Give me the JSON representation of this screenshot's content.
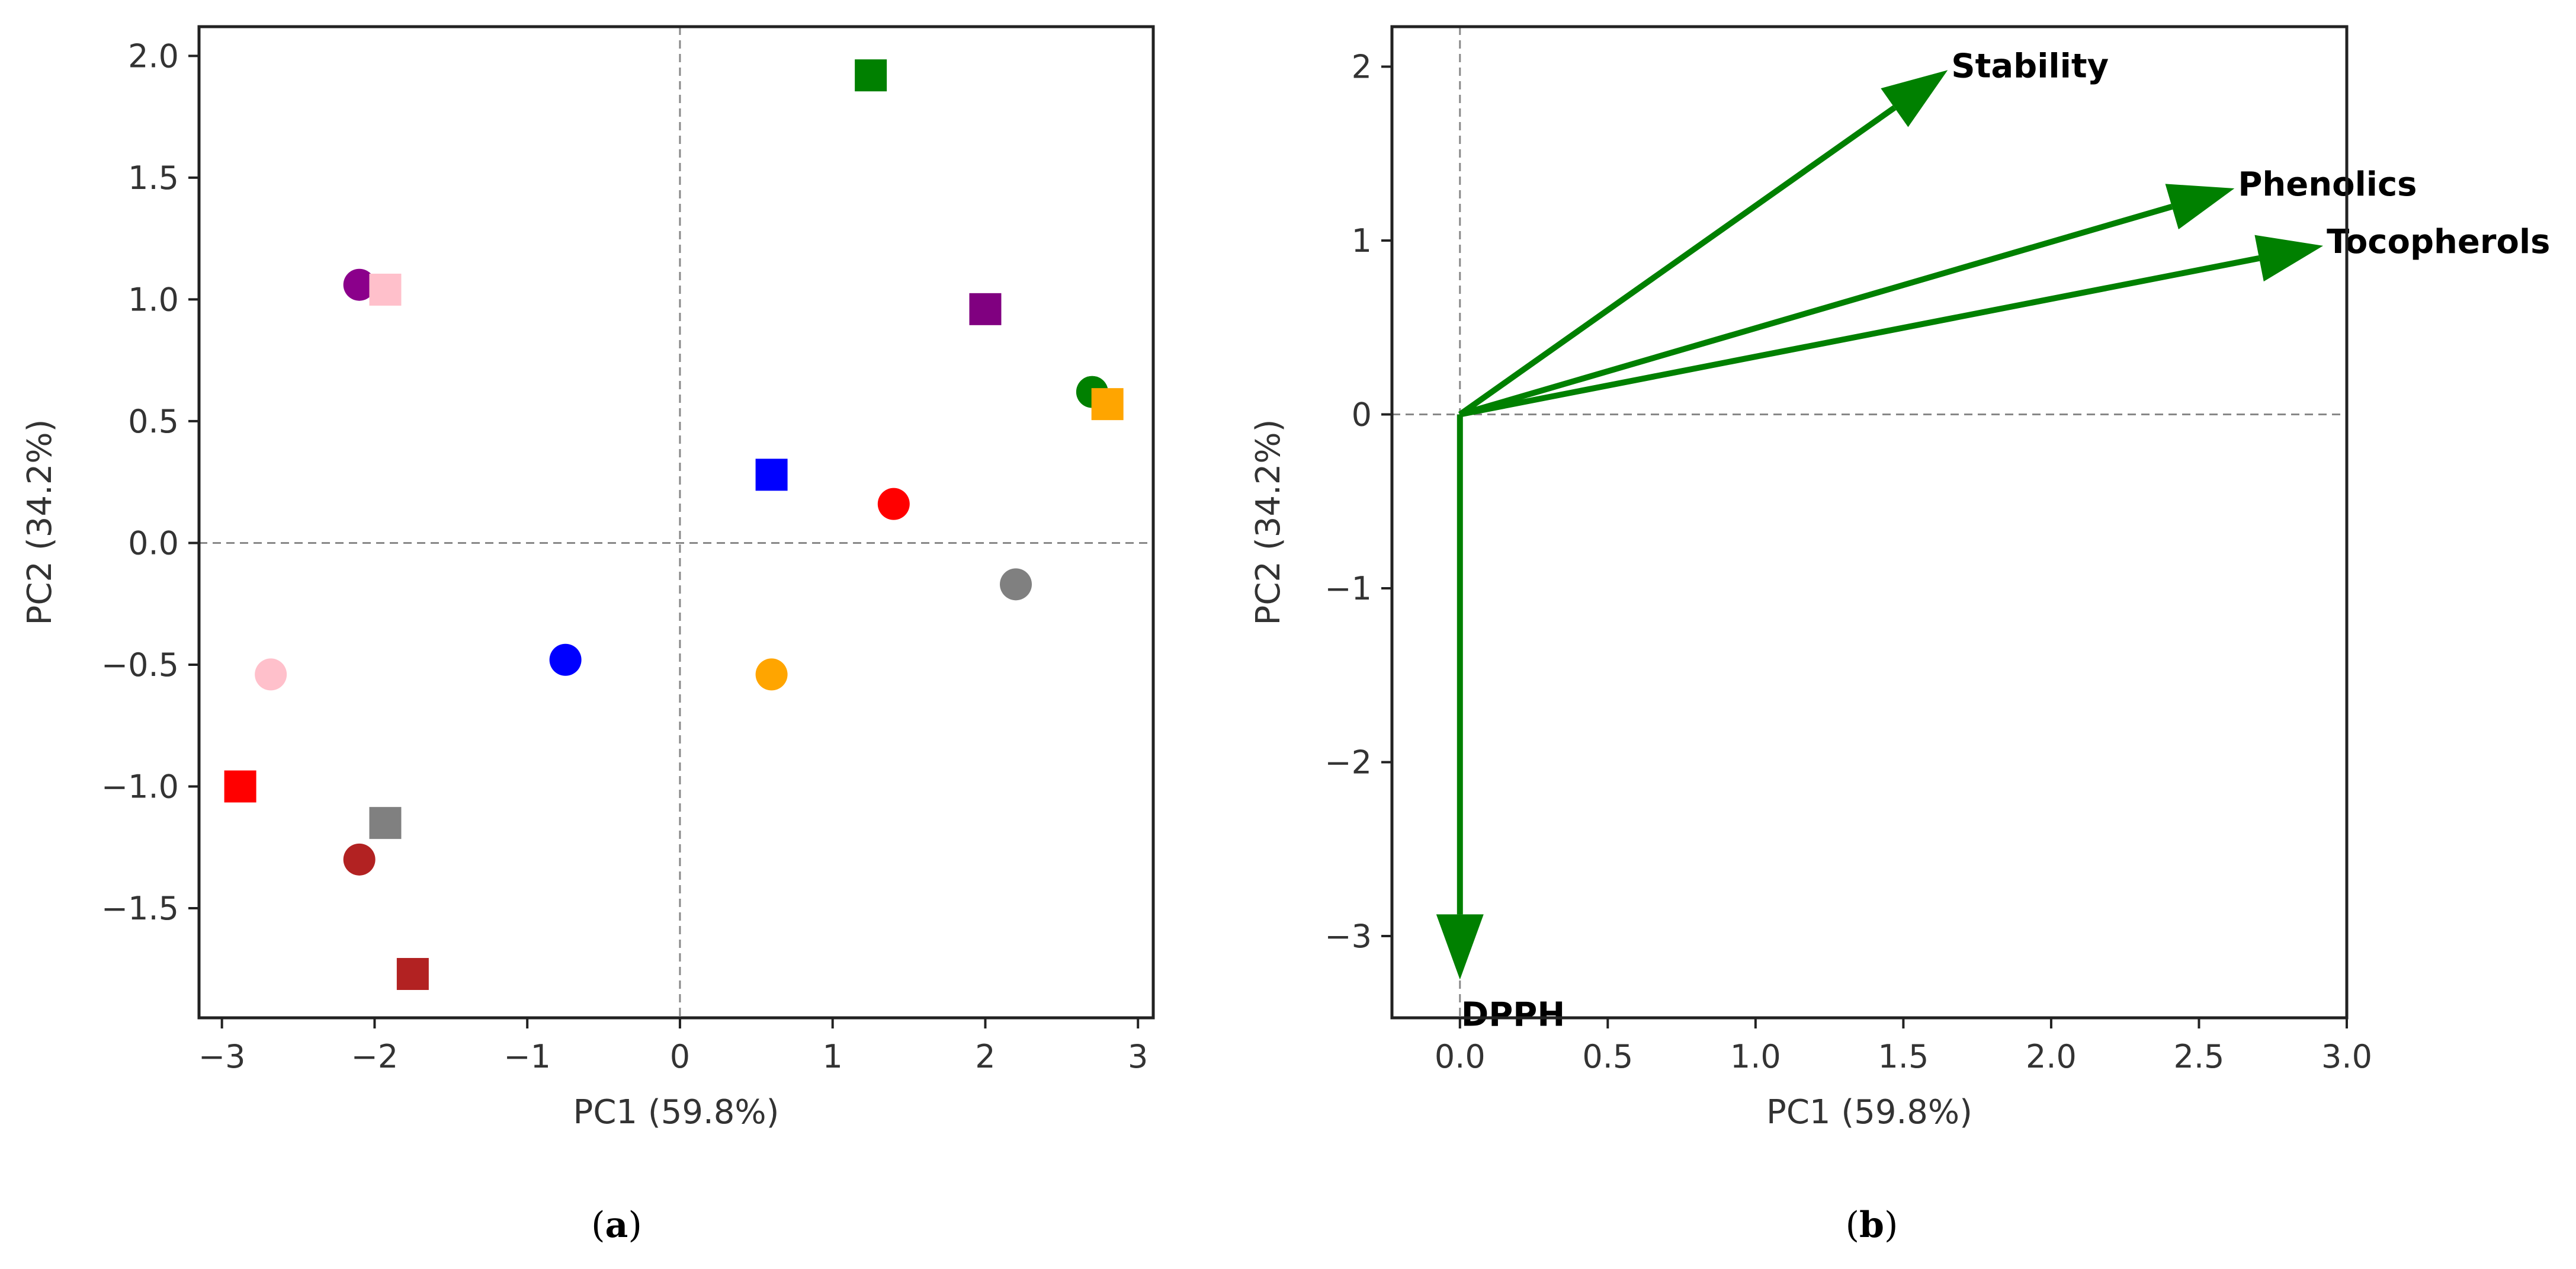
{
  "chart_data": [
    {
      "type": "scatter",
      "panel": "a",
      "caption_letter": "a",
      "xlabel": "PC1 (59.8%)",
      "ylabel": "PC2 (34.2%)",
      "xlim": [
        -3.15,
        3.1
      ],
      "ylim": [
        -1.95,
        2.12
      ],
      "xticks": [
        -3,
        -2,
        -1,
        0,
        1,
        2,
        3
      ],
      "yticks": [
        -1.5,
        -1.0,
        -0.5,
        0.0,
        0.5,
        1.0,
        1.5,
        2.0
      ],
      "xtick_labels": [
        "−3",
        "−2",
        "−1",
        "0",
        "1",
        "2",
        "3"
      ],
      "ytick_labels": [
        "−1.5",
        "−1.0",
        "−0.5",
        "0.0",
        "0.5",
        "1.0",
        "1.5",
        "2.0"
      ],
      "reference_lines": {
        "x": 0,
        "y": 0
      },
      "points": [
        {
          "x": -2.1,
          "y": 1.06,
          "marker": "circle",
          "color": "#8b008b"
        },
        {
          "x": -1.93,
          "y": 1.04,
          "marker": "square",
          "color": "#ffc0cb"
        },
        {
          "x": -2.68,
          "y": -0.54,
          "marker": "circle",
          "color": "#ffc0cb"
        },
        {
          "x": -2.88,
          "y": -1.0,
          "marker": "square",
          "color": "#ff0000"
        },
        {
          "x": -1.93,
          "y": -1.15,
          "marker": "square",
          "color": "#808080"
        },
        {
          "x": -2.1,
          "y": -1.3,
          "marker": "circle",
          "color": "#b22222"
        },
        {
          "x": -1.75,
          "y": -1.77,
          "marker": "square",
          "color": "#b22222"
        },
        {
          "x": -0.75,
          "y": -0.48,
          "marker": "circle",
          "color": "#0000ff"
        },
        {
          "x": 0.6,
          "y": 0.28,
          "marker": "square",
          "color": "#0000ff"
        },
        {
          "x": 0.6,
          "y": -0.54,
          "marker": "circle",
          "color": "#ffa500"
        },
        {
          "x": 1.4,
          "y": 0.16,
          "marker": "circle",
          "color": "#ff0000"
        },
        {
          "x": 1.25,
          "y": 1.92,
          "marker": "square",
          "color": "#008000"
        },
        {
          "x": 2.0,
          "y": 0.96,
          "marker": "square",
          "color": "#800080"
        },
        {
          "x": 2.2,
          "y": -0.17,
          "marker": "circle",
          "color": "#808080"
        },
        {
          "x": 2.7,
          "y": 0.62,
          "marker": "circle",
          "color": "#008000"
        },
        {
          "x": 2.8,
          "y": 0.57,
          "marker": "square",
          "color": "#ffa500"
        }
      ]
    },
    {
      "type": "biplot",
      "panel": "b",
      "caption_letter": "b",
      "xlabel": "PC1 (59.8%)",
      "ylabel": "PC2 (34.2%)",
      "xlim": [
        -0.23,
        3.0
      ],
      "ylim": [
        -3.47,
        2.23
      ],
      "xticks": [
        0.0,
        0.5,
        1.0,
        1.5,
        2.0,
        2.5,
        3.0
      ],
      "yticks": [
        -3,
        -2,
        -1,
        0,
        1,
        2
      ],
      "xtick_labels": [
        "0.0",
        "0.5",
        "1.0",
        "1.5",
        "2.0",
        "2.5",
        "3.0"
      ],
      "ytick_labels": [
        "−3",
        "−2",
        "−1",
        "0",
        "1",
        "2"
      ],
      "reference_lines": {
        "x": 0,
        "y": 0
      },
      "arrow_color": "#008000",
      "vectors": [
        {
          "name": "Stability",
          "x": 1.65,
          "y": 1.98
        },
        {
          "name": "Phenolics",
          "x": 2.62,
          "y": 1.3
        },
        {
          "name": "Tocopherols",
          "x": 2.92,
          "y": 0.97
        },
        {
          "name": "DPPH",
          "x": 0.0,
          "y": -3.25
        }
      ]
    }
  ]
}
